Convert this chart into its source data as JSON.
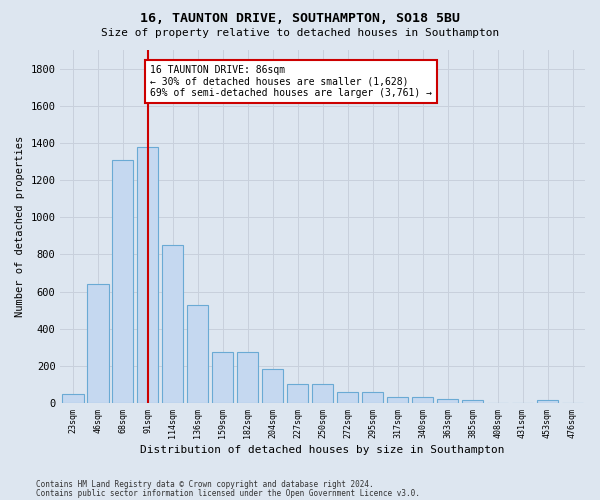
{
  "title1": "16, TAUNTON DRIVE, SOUTHAMPTON, SO18 5BU",
  "title2": "Size of property relative to detached houses in Southampton",
  "xlabel": "Distribution of detached houses by size in Southampton",
  "ylabel": "Number of detached properties",
  "footnote1": "Contains HM Land Registry data © Crown copyright and database right 2024.",
  "footnote2": "Contains public sector information licensed under the Open Government Licence v3.0.",
  "bin_labels": [
    "23sqm",
    "46sqm",
    "68sqm",
    "91sqm",
    "114sqm",
    "136sqm",
    "159sqm",
    "182sqm",
    "204sqm",
    "227sqm",
    "250sqm",
    "272sqm",
    "295sqm",
    "317sqm",
    "340sqm",
    "363sqm",
    "385sqm",
    "408sqm",
    "431sqm",
    "453sqm",
    "476sqm"
  ],
  "bar_heights": [
    50,
    640,
    1310,
    1380,
    850,
    530,
    275,
    275,
    185,
    105,
    105,
    60,
    60,
    35,
    35,
    25,
    15,
    0,
    0,
    15,
    0
  ],
  "bar_color": "#c5d8f0",
  "bar_edgecolor": "#6aaad4",
  "ylim": [
    0,
    1900
  ],
  "yticks": [
    0,
    200,
    400,
    600,
    800,
    1000,
    1200,
    1400,
    1600,
    1800
  ],
  "vline_index": 3,
  "annotation_text": "16 TAUNTON DRIVE: 86sqm\n← 30% of detached houses are smaller (1,628)\n69% of semi-detached houses are larger (3,761) →",
  "annotation_box_facecolor": "#ffffff",
  "annotation_box_edgecolor": "#cc0000",
  "vline_color": "#cc0000",
  "grid_color": "#c8d0dc",
  "background_color": "#dde6f0",
  "plot_bg_color": "#dde6f0"
}
